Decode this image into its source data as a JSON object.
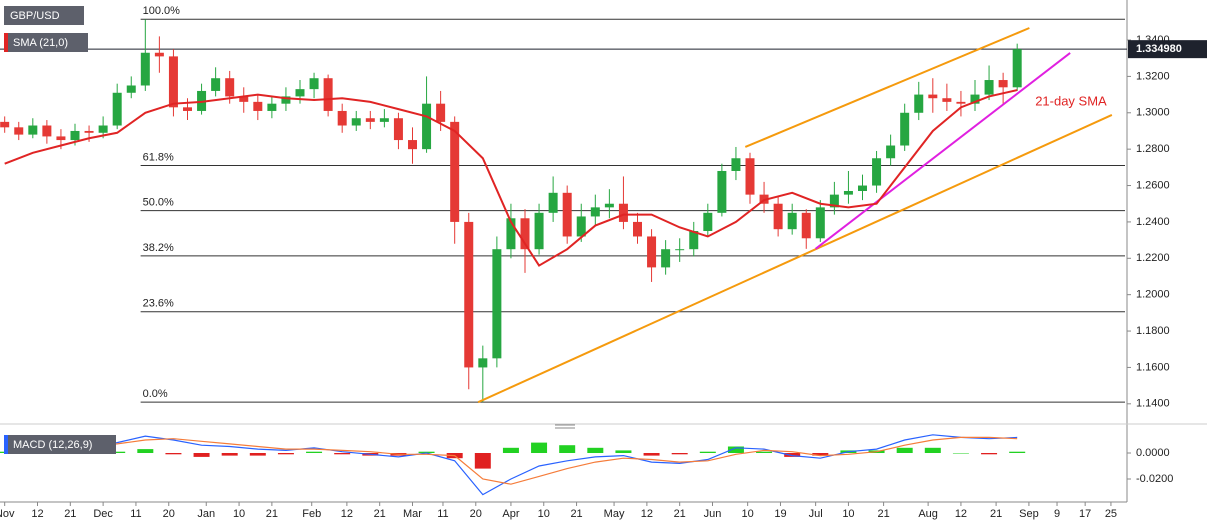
{
  "chart_data": [
    {
      "type": "candlestick",
      "instrument": "GBP/USD",
      "xlim": [
        -1,
        239
      ],
      "ylim": [
        1.13,
        1.362
      ],
      "yticks": [
        {
          "value": 1.34,
          "label": "1.3400"
        },
        {
          "value": 1.32,
          "label": "1.3200"
        },
        {
          "value": 1.3,
          "label": "1.3000"
        },
        {
          "value": 1.28,
          "label": "1.2800"
        },
        {
          "value": 1.26,
          "label": "1.2600"
        },
        {
          "value": 1.24,
          "label": "1.2400"
        },
        {
          "value": 1.22,
          "label": "1.2200"
        },
        {
          "value": 1.2,
          "label": "1.2000"
        },
        {
          "value": 1.18,
          "label": "1.1800"
        },
        {
          "value": 1.16,
          "label": "1.1600"
        },
        {
          "value": 1.14,
          "label": "1.1400"
        }
      ],
      "up_color": "#26a641",
      "down_color": "#e53935",
      "x": [
        0,
        3,
        6,
        9,
        12,
        15,
        18,
        21,
        24,
        27,
        30,
        33,
        36,
        39,
        42,
        45,
        48,
        51,
        54,
        57,
        60,
        63,
        66,
        69,
        72,
        75,
        78,
        81,
        84,
        87,
        90,
        93,
        96,
        99,
        102,
        105,
        108,
        111,
        114,
        117,
        120,
        123,
        126,
        129,
        132,
        135,
        138,
        141,
        144,
        147,
        150,
        153,
        156,
        159,
        162,
        165,
        168,
        171,
        174,
        177,
        180,
        183,
        186,
        189,
        192,
        195,
        198,
        201,
        204,
        207,
        210,
        213,
        216
      ],
      "open": [
        1.295,
        1.292,
        1.288,
        1.293,
        1.287,
        1.285,
        1.29,
        1.289,
        1.293,
        1.311,
        1.315,
        1.333,
        1.331,
        1.303,
        1.301,
        1.312,
        1.319,
        1.309,
        1.306,
        1.301,
        1.305,
        1.309,
        1.313,
        1.319,
        1.301,
        1.293,
        1.297,
        1.295,
        1.297,
        1.285,
        1.28,
        1.305,
        1.295,
        1.24,
        1.16,
        1.165,
        1.225,
        1.242,
        1.225,
        1.245,
        1.256,
        1.232,
        1.243,
        1.248,
        1.25,
        1.24,
        1.232,
        1.215,
        1.225,
        1.225,
        1.235,
        1.245,
        1.268,
        1.275,
        1.255,
        1.25,
        1.236,
        1.245,
        1.231,
        1.248,
        1.255,
        1.257,
        1.26,
        1.275,
        1.282,
        1.3,
        1.31,
        1.308,
        1.306,
        1.305,
        1.31,
        1.318,
        1.314
      ],
      "high": [
        1.298,
        1.295,
        1.297,
        1.296,
        1.291,
        1.294,
        1.293,
        1.298,
        1.316,
        1.32,
        1.3514,
        1.342,
        1.335,
        1.308,
        1.316,
        1.325,
        1.323,
        1.314,
        1.31,
        1.309,
        1.314,
        1.318,
        1.322,
        1.321,
        1.305,
        1.301,
        1.301,
        1.302,
        1.3,
        1.292,
        1.32,
        1.312,
        1.298,
        1.245,
        1.172,
        1.232,
        1.25,
        1.247,
        1.25,
        1.265,
        1.26,
        1.25,
        1.255,
        1.258,
        1.265,
        1.245,
        1.236,
        1.23,
        1.231,
        1.24,
        1.25,
        1.272,
        1.2812,
        1.278,
        1.262,
        1.254,
        1.25,
        1.247,
        1.252,
        1.262,
        1.268,
        1.266,
        1.279,
        1.288,
        1.305,
        1.317,
        1.319,
        1.316,
        1.312,
        1.318,
        1.326,
        1.322,
        1.338
      ],
      "low": [
        1.289,
        1.285,
        1.286,
        1.283,
        1.28,
        1.282,
        1.284,
        1.286,
        1.291,
        1.308,
        1.312,
        1.322,
        1.298,
        1.296,
        1.299,
        1.309,
        1.305,
        1.3,
        1.296,
        1.297,
        1.301,
        1.305,
        1.308,
        1.298,
        1.289,
        1.29,
        1.291,
        1.292,
        1.28,
        1.272,
        1.278,
        1.29,
        1.228,
        1.148,
        1.1409,
        1.16,
        1.22,
        1.212,
        1.222,
        1.24,
        1.228,
        1.229,
        1.238,
        1.242,
        1.236,
        1.228,
        1.207,
        1.211,
        1.218,
        1.221,
        1.232,
        1.243,
        1.263,
        1.25,
        1.245,
        1.232,
        1.233,
        1.2252,
        1.229,
        1.244,
        1.25,
        1.252,
        1.256,
        1.271,
        1.279,
        1.296,
        1.3,
        1.301,
        1.298,
        1.301,
        1.307,
        1.305,
        1.312
      ],
      "close": [
        1.292,
        1.288,
        1.293,
        1.287,
        1.285,
        1.29,
        1.289,
        1.293,
        1.311,
        1.315,
        1.333,
        1.331,
        1.303,
        1.301,
        1.312,
        1.319,
        1.309,
        1.306,
        1.301,
        1.305,
        1.309,
        1.313,
        1.319,
        1.301,
        1.293,
        1.297,
        1.295,
        1.297,
        1.285,
        1.28,
        1.305,
        1.295,
        1.24,
        1.16,
        1.165,
        1.225,
        1.242,
        1.225,
        1.245,
        1.256,
        1.232,
        1.243,
        1.248,
        1.25,
        1.24,
        1.232,
        1.215,
        1.225,
        1.225,
        1.235,
        1.245,
        1.268,
        1.275,
        1.255,
        1.25,
        1.236,
        1.245,
        1.231,
        1.248,
        1.255,
        1.257,
        1.26,
        1.275,
        1.282,
        1.3,
        1.31,
        1.308,
        1.306,
        1.305,
        1.31,
        1.318,
        1.314,
        1.33498
      ],
      "last_price": {
        "value": 1.33498,
        "label": "1.334980"
      },
      "sma": {
        "name": "SMA (21,0)",
        "color": "#e02424",
        "annotation": "21-day SMA",
        "x": [
          0,
          6,
          12,
          18,
          24,
          30,
          36,
          42,
          48,
          54,
          60,
          66,
          72,
          78,
          84,
          90,
          96,
          102,
          108,
          114,
          120,
          126,
          132,
          138,
          144,
          150,
          156,
          162,
          168,
          174,
          180,
          186,
          192,
          198,
          204,
          210,
          216
        ],
        "values": [
          1.272,
          1.278,
          1.282,
          1.286,
          1.289,
          1.3,
          1.305,
          1.306,
          1.308,
          1.31,
          1.308,
          1.307,
          1.308,
          1.306,
          1.302,
          1.298,
          1.29,
          1.275,
          1.24,
          1.216,
          1.225,
          1.238,
          1.244,
          1.244,
          1.237,
          1.232,
          1.24,
          1.252,
          1.256,
          1.25,
          1.248,
          1.25,
          1.27,
          1.29,
          1.303,
          1.309,
          1.3125
        ]
      },
      "fib_start": 29,
      "fib_levels": [
        {
          "label": "100.0%",
          "value": 1.3514
        },
        {
          "label": "61.8%",
          "value": 1.271
        },
        {
          "label": "50.0%",
          "value": 1.2462
        },
        {
          "label": "38.2%",
          "value": 1.2213
        },
        {
          "label": "23.6%",
          "value": 1.1906
        },
        {
          "label": "0.0%",
          "value": 1.1409
        }
      ],
      "trendlines": [
        {
          "color": "#f59a0d",
          "x": [
            158,
            218.6
          ],
          "values": [
            1.2812,
            1.3466
          ]
        },
        {
          "color": "#f59a0d",
          "x": [
            101,
            236.2
          ],
          "values": [
            1.1409,
            1.2988
          ]
        },
        {
          "color": "#e020e0",
          "x": [
            173,
            227.3
          ],
          "values": [
            1.2252,
            1.3329
          ]
        }
      ]
    },
    {
      "type": "macd",
      "title": "MACD (12,26,9)",
      "xlim": [
        -1,
        239
      ],
      "ylim": [
        -0.0377,
        0.0177
      ],
      "yticks": [
        {
          "value": 0,
          "label": "0.0000"
        },
        {
          "value": -0.02,
          "label": "-0.0200"
        }
      ],
      "xticks": [
        {
          "value": 0,
          "label": "Nov"
        },
        {
          "value": 7,
          "label": "12"
        },
        {
          "value": 14,
          "label": "21"
        },
        {
          "value": 21,
          "label": "Dec"
        },
        {
          "value": 28,
          "label": "11"
        },
        {
          "value": 35,
          "label": "20"
        },
        {
          "value": 43,
          "label": "Jan"
        },
        {
          "value": 50,
          "label": "10"
        },
        {
          "value": 57,
          "label": "21"
        },
        {
          "value": 65.5,
          "label": "Feb"
        },
        {
          "value": 73,
          "label": "12"
        },
        {
          "value": 80,
          "label": "21"
        },
        {
          "value": 87,
          "label": "Mar"
        },
        {
          "value": 93.5,
          "label": "11"
        },
        {
          "value": 100.5,
          "label": "20"
        },
        {
          "value": 108,
          "label": "Apr"
        },
        {
          "value": 115,
          "label": "10"
        },
        {
          "value": 122,
          "label": "21"
        },
        {
          "value": 130,
          "label": "May"
        },
        {
          "value": 137,
          "label": "12"
        },
        {
          "value": 144,
          "label": "21"
        },
        {
          "value": 151,
          "label": "Jun"
        },
        {
          "value": 158.5,
          "label": "10"
        },
        {
          "value": 165.5,
          "label": "19"
        },
        {
          "value": 173,
          "label": "Jul"
        },
        {
          "value": 180,
          "label": "10"
        },
        {
          "value": 187.5,
          "label": "21"
        },
        {
          "value": 197,
          "label": "Aug"
        },
        {
          "value": 204,
          "label": "12"
        },
        {
          "value": 211.5,
          "label": "21"
        },
        {
          "value": 218.5,
          "label": "Sep"
        },
        {
          "value": 224.5,
          "label": "9"
        },
        {
          "value": 230.5,
          "label": "17"
        },
        {
          "value": 236,
          "label": "25"
        }
      ],
      "x": [
        0,
        6,
        12,
        18,
        24,
        30,
        36,
        42,
        48,
        54,
        60,
        66,
        72,
        78,
        84,
        90,
        96,
        102,
        108,
        114,
        120,
        126,
        132,
        138,
        144,
        150,
        156,
        162,
        168,
        174,
        180,
        186,
        192,
        198,
        204,
        210,
        216
      ],
      "series": [
        {
          "color": "#2962ff",
          "values": [
            0.004,
            0.005,
            0.006,
            0.007,
            0.008,
            0.013,
            0.01,
            0.006,
            0.005,
            0.003,
            0.002,
            0.004,
            0.001,
            -0.001,
            -0.003,
            0,
            -0.006,
            -0.032,
            -0.02,
            -0.01,
            -0.006,
            -0.003,
            -0.002,
            -0.007,
            -0.008,
            -0.005,
            0.004,
            0.003,
            -0.002,
            -0.004,
            0.001,
            0.003,
            0.01,
            0.014,
            0.012,
            0.011,
            0.012
          ]
        },
        {
          "color": "#f57c3a",
          "values": [
            0.003,
            0.004,
            0.005,
            0.006,
            0.007,
            0.01,
            0.011,
            0.009,
            0.007,
            0.005,
            0.003,
            0.003,
            0.002,
            0.001,
            -0.001,
            -0.001,
            -0.002,
            -0.02,
            -0.024,
            -0.018,
            -0.012,
            -0.007,
            -0.004,
            -0.005,
            -0.007,
            -0.006,
            -0.001,
            0.002,
            0.001,
            -0.002,
            -0.001,
            0.001,
            0.006,
            0.01,
            0.012,
            0.012,
            0.011
          ]
        }
      ],
      "histogram": {
        "up_color": "#22d122",
        "down_color": "#e02020",
        "values": [
          0.001,
          0.001,
          0.001,
          0.001,
          0.001,
          0.003,
          -0.001,
          -0.003,
          -0.002,
          -0.002,
          -0.001,
          0.001,
          -0.001,
          -0.002,
          -0.002,
          0.001,
          -0.004,
          -0.012,
          0.004,
          0.008,
          0.006,
          0.004,
          0.002,
          -0.002,
          -0.001,
          0.001,
          0.005,
          0.001,
          -0.003,
          -0.002,
          0.002,
          0.002,
          0.004,
          0.004,
          0,
          -0.001,
          0.001
        ]
      }
    }
  ]
}
